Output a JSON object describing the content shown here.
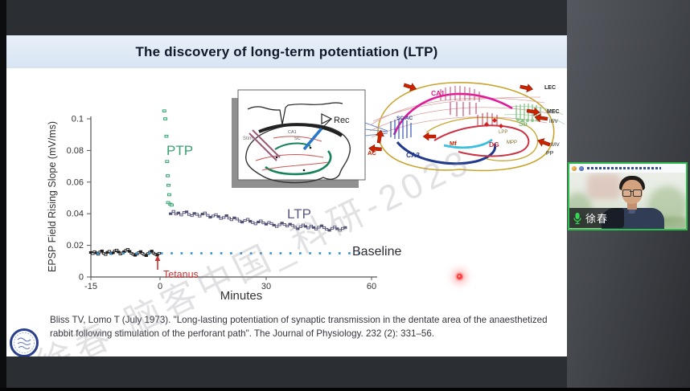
{
  "slide": {
    "title": "The discovery of long-term potentiation (LTP)",
    "citation": "Bliss TV, Lomo T (July 1973). \"Long-lasting potentiation of synaptic transmission in the dentate area of the anaesthetized rabbit following stimulation of the perforant path\". The Journal of Physiology. 232 (2): 331–56.",
    "watermark": "徐春-脑客中国_科研-2023"
  },
  "chart_data": {
    "type": "scatter",
    "xlabel": "Minutes",
    "ylabel": "EPSP Field Rising Slope (mV/ms)",
    "xlim": [
      -15,
      60
    ],
    "ylim": [
      0,
      0.1
    ],
    "xticks": [
      -15,
      0,
      30,
      60
    ],
    "xtick_labels": [
      "-15",
      "0",
      "30",
      "60"
    ],
    "yticks": [
      0,
      0.02,
      0.04,
      0.06,
      0.08,
      0.1
    ],
    "ytick_labels": [
      "0",
      "0.02",
      "0.04",
      "0.06",
      "0.08",
      "0.1"
    ],
    "grid": false,
    "annotations": {
      "ptp": "PTP",
      "ltp": "LTP",
      "baseline": "Baseline",
      "tetanus": "Tetanus"
    },
    "tetanus_time_min": 0,
    "series": [
      {
        "name": "pre_tetanus_epsp",
        "color": "#1c1c1c",
        "marker": "open-rect",
        "points": [
          [
            -15,
            0.0155
          ],
          [
            -14.6,
            0.0148
          ],
          [
            -14.2,
            0.016
          ],
          [
            -13.8,
            0.0152
          ],
          [
            -13.4,
            0.0144
          ],
          [
            -13,
            0.0158
          ],
          [
            -12.6,
            0.0165
          ],
          [
            -12.2,
            0.015
          ],
          [
            -11.8,
            0.0142
          ],
          [
            -11.4,
            0.0156
          ],
          [
            -11,
            0.0162
          ],
          [
            -10.6,
            0.0149
          ],
          [
            -10.2,
            0.0153
          ],
          [
            -9.8,
            0.0165
          ],
          [
            -9.4,
            0.017
          ],
          [
            -9,
            0.0158
          ],
          [
            -8.6,
            0.0146
          ],
          [
            -8.2,
            0.0152
          ],
          [
            -7.8,
            0.016
          ],
          [
            -7.4,
            0.0168
          ],
          [
            -7,
            0.0175
          ],
          [
            -6.6,
            0.0162
          ],
          [
            -6.2,
            0.015
          ],
          [
            -5.8,
            0.0143
          ],
          [
            -5.4,
            0.0137
          ],
          [
            -5,
            0.0146
          ],
          [
            -4.6,
            0.0154
          ],
          [
            -4.2,
            0.0161
          ],
          [
            -3.8,
            0.0149
          ],
          [
            -3.4,
            0.0141
          ],
          [
            -3,
            0.0135
          ],
          [
            -2.6,
            0.0148
          ],
          [
            -2.2,
            0.0157
          ],
          [
            -1.8,
            0.0164
          ],
          [
            -1.4,
            0.0151
          ],
          [
            -1,
            0.0144
          ],
          [
            -0.6,
            0.0138
          ],
          [
            -0.2,
            0.015
          ]
        ]
      },
      {
        "name": "ptp",
        "color": "#36a472",
        "marker": "green-rect",
        "points": [
          [
            1.2,
            0.105
          ],
          [
            1.5,
            0.1
          ],
          [
            1.8,
            0.089
          ],
          [
            2.0,
            0.073
          ],
          [
            2.2,
            0.064
          ],
          [
            2.4,
            0.058
          ],
          [
            2.6,
            0.052
          ],
          [
            2.3,
            0.047
          ],
          [
            2.9,
            0.046
          ],
          [
            3.3,
            0.0455
          ]
        ]
      },
      {
        "name": "ltp",
        "color": "#4e4e74",
        "marker": "open-rect",
        "points": [
          [
            3.0,
            0.04
          ],
          [
            3.8,
            0.0415
          ],
          [
            4.5,
            0.0398
          ],
          [
            5.2,
            0.0405
          ],
          [
            6.0,
            0.0392
          ],
          [
            6.8,
            0.0408
          ],
          [
            7.5,
            0.0412
          ],
          [
            8.2,
            0.0395
          ],
          [
            9.0,
            0.0388
          ],
          [
            9.7,
            0.0402
          ],
          [
            10.4,
            0.0396
          ],
          [
            11.2,
            0.0385
          ],
          [
            12.0,
            0.0398
          ],
          [
            12.7,
            0.0405
          ],
          [
            13.5,
            0.039
          ],
          [
            14.2,
            0.0378
          ],
          [
            15.0,
            0.0386
          ],
          [
            15.8,
            0.0394
          ],
          [
            16.5,
            0.0382
          ],
          [
            17.2,
            0.037
          ],
          [
            18.0,
            0.0376
          ],
          [
            18.8,
            0.0388
          ],
          [
            19.5,
            0.0372
          ],
          [
            20.2,
            0.0362
          ],
          [
            21.0,
            0.0374
          ],
          [
            21.8,
            0.0366
          ],
          [
            22.5,
            0.0354
          ],
          [
            23.2,
            0.0347
          ],
          [
            24.0,
            0.0358
          ],
          [
            24.8,
            0.0365
          ],
          [
            25.5,
            0.0352
          ],
          [
            26.2,
            0.0344
          ],
          [
            27.0,
            0.0336
          ],
          [
            27.8,
            0.0348
          ],
          [
            28.5,
            0.0355
          ],
          [
            29.2,
            0.0342
          ],
          [
            30.0,
            0.0334
          ],
          [
            30.8,
            0.0345
          ],
          [
            31.5,
            0.0338
          ],
          [
            32.2,
            0.0328
          ],
          [
            33.0,
            0.0319
          ],
          [
            33.8,
            0.033
          ],
          [
            34.5,
            0.0341
          ],
          [
            35.2,
            0.0332
          ],
          [
            36.0,
            0.0322
          ],
          [
            36.8,
            0.0334
          ],
          [
            37.5,
            0.0326
          ],
          [
            38.2,
            0.0315
          ],
          [
            39.0,
            0.0305
          ],
          [
            39.8,
            0.0318
          ],
          [
            40.5,
            0.0329
          ],
          [
            41.2,
            0.032
          ],
          [
            42.0,
            0.031
          ],
          [
            42.8,
            0.0322
          ],
          [
            43.5,
            0.0313
          ],
          [
            44.2,
            0.0303
          ],
          [
            45.0,
            0.0315
          ],
          [
            45.8,
            0.0324
          ],
          [
            46.5,
            0.0312
          ],
          [
            47.2,
            0.0302
          ],
          [
            48.0,
            0.0295
          ],
          [
            48.8,
            0.0308
          ],
          [
            49.5,
            0.0316
          ],
          [
            50.2,
            0.0305
          ],
          [
            51.0,
            0.0296
          ],
          [
            51.8,
            0.0308
          ],
          [
            52.5,
            0.0313
          ]
        ]
      },
      {
        "name": "baseline_reference",
        "color": "#2e8fd0",
        "marker": "dot",
        "points": [
          [
            -13.5,
            0.015
          ],
          [
            -10.7,
            0.015
          ],
          [
            -7.9,
            0.015
          ],
          [
            -5.1,
            0.015
          ],
          [
            -2.3,
            0.015
          ],
          [
            0.5,
            0.015
          ],
          [
            3.3,
            0.015
          ],
          [
            6.1,
            0.015
          ],
          [
            8.9,
            0.015
          ],
          [
            11.7,
            0.015
          ],
          [
            14.5,
            0.015
          ],
          [
            17.3,
            0.015
          ],
          [
            20.1,
            0.015
          ],
          [
            22.9,
            0.015
          ],
          [
            25.7,
            0.015
          ],
          [
            28.5,
            0.015
          ],
          [
            31.3,
            0.015
          ],
          [
            34.1,
            0.015
          ],
          [
            36.9,
            0.015
          ],
          [
            39.7,
            0.015
          ],
          [
            42.5,
            0.015
          ],
          [
            45.3,
            0.015
          ],
          [
            48.1,
            0.015
          ],
          [
            50.9,
            0.015
          ],
          [
            53.7,
            0.015
          ],
          [
            56.5,
            0.015
          ]
        ]
      }
    ]
  },
  "inset": {
    "rec_label": "Rec",
    "stim_label": "Stim",
    "region_labels": {
      "ca1": "CA1",
      "sc": "SC"
    }
  },
  "hippocampus_diagram": {
    "labels": {
      "ca1": "CA1",
      "scac": "SC/AC",
      "ac": "AC",
      "ca3": "CA3",
      "mf": "Mf",
      "dg": "DG",
      "sb": "Sb",
      "lpp": "LPP",
      "mpp": "MPP",
      "lec": "LEC",
      "mec": "MEC",
      "iii_v": "III/V",
      "ii_iv": "II/IV",
      "pp": "PP"
    }
  },
  "webcam": {
    "participant_name": "徐春",
    "border_color": "#2dbd4e"
  },
  "laser_pointer_color": "#ff4040"
}
